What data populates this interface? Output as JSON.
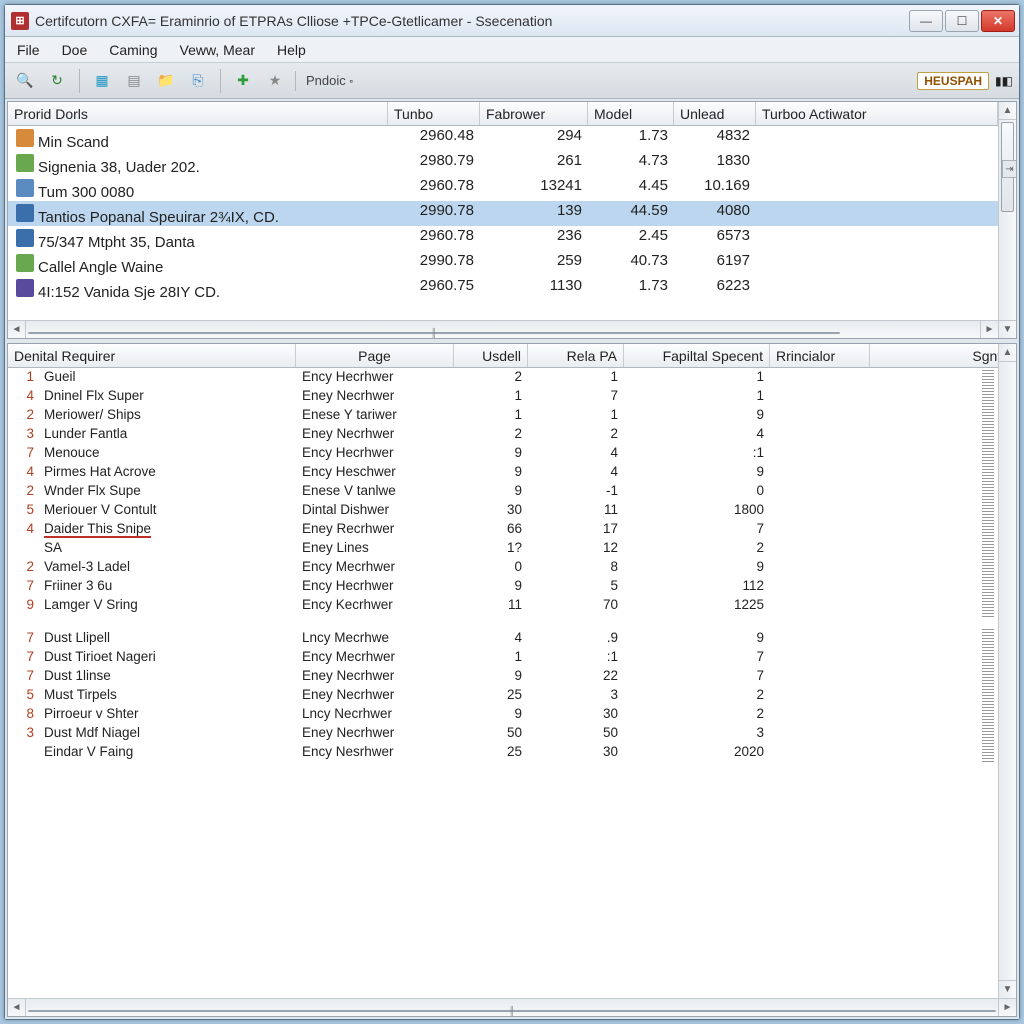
{
  "window": {
    "title": "Certifcutorn CXFA= Eraminrio of ETPRAs Clliose +TPCe-Gtetlicamer - Ssecenation",
    "icon_bg": "#b03030"
  },
  "menu": {
    "items": [
      "File",
      "Doe",
      "Caming",
      "Veww, Mear",
      "Help"
    ]
  },
  "toolbar": {
    "icons": [
      {
        "name": "search-icon",
        "glyph": "🔍",
        "color": "#4a4a4a"
      },
      {
        "name": "refresh-icon",
        "glyph": "↻",
        "color": "#2e7d32"
      },
      {
        "sep": true
      },
      {
        "name": "grid-icon",
        "glyph": "▦",
        "color": "#2196c3"
      },
      {
        "name": "card-icon",
        "glyph": "▤",
        "color": "#888"
      },
      {
        "name": "folder-icon",
        "glyph": "📁",
        "color": "#caa24a"
      },
      {
        "name": "copy-icon",
        "glyph": "⎘",
        "color": "#3a88c8"
      },
      {
        "sep": true
      },
      {
        "name": "add-icon",
        "glyph": "✚",
        "color": "#2e9e3a"
      },
      {
        "name": "star-icon",
        "glyph": "★",
        "color": "#888"
      }
    ],
    "label": "Pndoic ⬞",
    "right_badge": "HEUSPAH",
    "right_extra": "▮◧"
  },
  "upper": {
    "headers": [
      "Prorid Dorls",
      "Tunbo",
      "Fabrower",
      "Model",
      "Unlead",
      "Turboo Actiwator"
    ],
    "rows": [
      {
        "icon": "#d68a3a",
        "name": "Min Scand",
        "c1": "2960.48",
        "c2": "294",
        "c3": "1.73",
        "c4": "4832",
        "sel": false
      },
      {
        "icon": "#6aa84f",
        "name": "Signenia 38, Uader 202.",
        "c1": "2980.79",
        "c2": "261",
        "c3": "4.73",
        "c4": "1830",
        "sel": false
      },
      {
        "icon": "#5b8bc0",
        "name": "Tum 300 0080",
        "c1": "2960.78",
        "c2": "13241",
        "c3": "4.45",
        "c4": "10.169",
        "sel": false
      },
      {
        "icon": "#3a6fab",
        "name": "Tantios Popanal Speuirar 2¾IX, CD.",
        "c1": "2990.78",
        "c2": "139",
        "c3": "44.59",
        "c4": "4080",
        "sel": true
      },
      {
        "icon": "#3a6fab",
        "name": "75/347 Mtpht 35, Danta",
        "c1": "2960.78",
        "c2": "236",
        "c3": "2.45",
        "c4": "6573",
        "sel": false
      },
      {
        "icon": "#6aa84f",
        "name": "Callel Angle Waine",
        "c1": "2990.78",
        "c2": "259",
        "c3": "40.73",
        "c4": "6197",
        "sel": false
      },
      {
        "icon": "#5a4a9e",
        "name": "4I:152 Vanida Sje 28IY CD.",
        "c1": "2960.75",
        "c2": "1130",
        "c3": "1.73",
        "c4": "6223",
        "sel": false
      }
    ]
  },
  "lower": {
    "headers": [
      "Denital Requirer",
      "Page",
      "Usdell",
      "Rela PA",
      "Fapiltal Specent",
      "Rrincialor",
      "Sgnte"
    ],
    "group1": [
      {
        "idx": "1",
        "name": "Gueil",
        "page": "Ency Hecrhwer",
        "c2": "2",
        "c3": "1",
        "c4": "1"
      },
      {
        "idx": "4",
        "name": "Dninel Flx Super",
        "page": "Eney Necrhwer",
        "c2": "1",
        "c3": "7",
        "c4": "1"
      },
      {
        "idx": "2",
        "name": "Meriower/ Ships",
        "page": "Enese Y tariwer",
        "c2": "1",
        "c3": "1",
        "c4": "9"
      },
      {
        "idx": "3",
        "name": "Lunder Fantla",
        "page": "Eney Necrhwer",
        "c2": "2",
        "c3": "2",
        "c4": "4"
      },
      {
        "idx": "7",
        "name": "Menouce",
        "page": "Ency Hecrhwer",
        "c2": "9",
        "c3": "4",
        "c4": ":1"
      },
      {
        "idx": "4",
        "name": "Pirmes Hat Acrove",
        "page": "Ency Heschwer",
        "c2": "9",
        "c3": "4",
        "c4": "9"
      },
      {
        "idx": "2",
        "name": "Wnder Flx Supe",
        "page": "Enese V tanlwe",
        "c2": "9",
        "c3": "-1",
        "c4": "0"
      },
      {
        "idx": "5",
        "name": "Meriouer V Contult",
        "page": "Dintal Dishwer",
        "c2": "30",
        "c3": "11",
        "c4": "1800"
      },
      {
        "idx": "4",
        "name": "Daider This Snipe",
        "page": "Eney Recrhwer",
        "c2": "66",
        "c3": "17",
        "c4": "7",
        "under": true
      },
      {
        "idx": "",
        "name": "SA",
        "page": "Eney Lines",
        "c2": "1?",
        "c3": "12",
        "c4": "2"
      },
      {
        "idx": "2",
        "name": "Vamel-3 Ladel",
        "page": "Ency Mecrhwer",
        "c2": "0",
        "c3": "8",
        "c4": "9"
      },
      {
        "idx": "7",
        "name": "Friiner 3 6u",
        "page": "Ency Hecrhwer",
        "c2": "9",
        "c3": "5",
        "c4": "112"
      },
      {
        "idx": "9",
        "name": "Lamger V Sring",
        "page": "Ency Kecrhwer",
        "c2": "11",
        "c3": "70",
        "c4": "1225"
      }
    ],
    "group2": [
      {
        "idx": "7",
        "name": "Dust Llipell",
        "page": "Lncy Mecrhwe",
        "c2": "4",
        "c3": ".9",
        "c4": "9"
      },
      {
        "idx": "7",
        "name": "Dust Tirioet Nageri",
        "page": "Ency Mecrhwer",
        "c2": "1",
        "c3": ":1",
        "c4": "7"
      },
      {
        "idx": "7",
        "name": "Dust 1linse",
        "page": "Eney Necrhwer",
        "c2": "9",
        "c3": "22",
        "c4": "7"
      },
      {
        "idx": "5",
        "name": "Must Tirpels",
        "page": "Eney Necrhwer",
        "c2": "25",
        "c3": "3",
        "c4": "2"
      },
      {
        "idx": "8",
        "name": "Pirroeur v Shter",
        "page": "Lncy Necrhwer",
        "c2": "9",
        "c3": "30",
        "c4": "2"
      },
      {
        "idx": "3",
        "name": "Dust Mdf Niagel",
        "page": "Eney Necrhwer",
        "c2": "50",
        "c3": "50",
        "c4": "3"
      },
      {
        "idx": "",
        "name": "Eindar V Faing",
        "page": "Ency Nesrhwer",
        "c2": "25",
        "c3": "30",
        "c4": "2020"
      }
    ]
  },
  "colors": {
    "selected_row": "#bcd6ef",
    "window_bg": "#e8edf2",
    "outer_bg": "#a8c8e0",
    "idx_color": "#b04020"
  }
}
